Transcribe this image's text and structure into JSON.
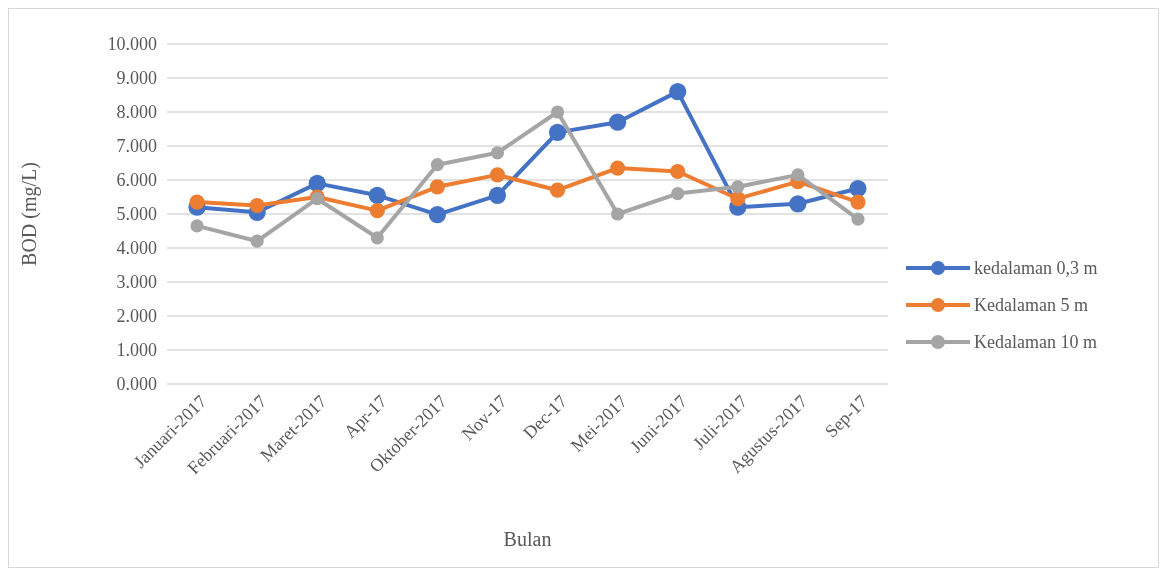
{
  "chart_data": {
    "type": "line",
    "xlabel": "Bulan",
    "ylabel": "BOD  (mg/L)",
    "categories": [
      "Januari-2017",
      "Februari-2017",
      "Maret-2017",
      "Apr-17",
      "Oktober-2017",
      "Nov-17",
      "Dec-17",
      "Mei-2017",
      "Juni-2017",
      "Juli-2017",
      "Agustus-2017",
      "Sep-17"
    ],
    "series": [
      {
        "name": "kedalaman 0,3 m",
        "color": "#4472c4",
        "values": [
          5.2,
          5.05,
          5.9,
          5.55,
          4.98,
          5.55,
          7.4,
          7.7,
          8.6,
          5.2,
          5.3,
          5.75
        ]
      },
      {
        "name": "Kedalaman 5 m",
        "color": "#ed7d31",
        "values": [
          5.35,
          5.25,
          5.5,
          5.1,
          5.8,
          6.15,
          5.7,
          6.35,
          6.25,
          5.45,
          5.95,
          5.35
        ]
      },
      {
        "name": "Kedalaman 10 m",
        "color": "#a5a5a5",
        "values": [
          4.65,
          4.2,
          5.45,
          4.3,
          6.45,
          6.8,
          8.0,
          5.0,
          5.6,
          5.8,
          6.15,
          4.85
        ]
      }
    ],
    "ylim": [
      0,
      10
    ],
    "yticks": [
      {
        "value": 0,
        "label": "0.000"
      },
      {
        "value": 1,
        "label": "1.000"
      },
      {
        "value": 2,
        "label": "2.000"
      },
      {
        "value": 3,
        "label": "3.000"
      },
      {
        "value": 4,
        "label": "4.000"
      },
      {
        "value": 5,
        "label": "5.000"
      },
      {
        "value": 6,
        "label": "6.000"
      },
      {
        "value": 7,
        "label": "7.000"
      },
      {
        "value": 8,
        "label": "8.000"
      },
      {
        "value": 9,
        "label": "9.000"
      },
      {
        "value": 10,
        "label": "10.000"
      }
    ],
    "grid": "y",
    "legend": "right",
    "marker": "circle",
    "line_style": "solid"
  }
}
